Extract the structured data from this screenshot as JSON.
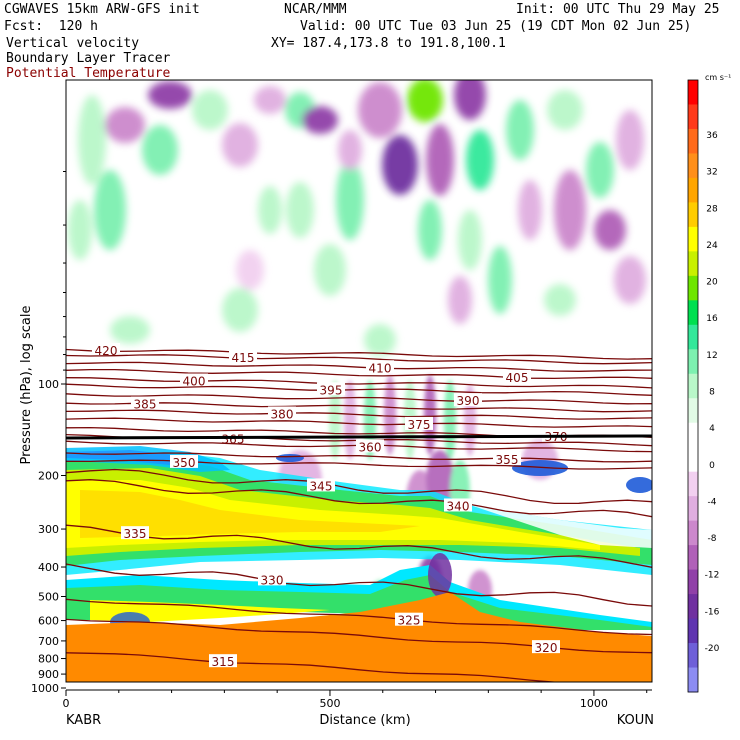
{
  "header": {
    "model": "CGWAVES 15km ARW-GFS init",
    "org": "NCAR/MMM",
    "init": "Init: 00 UTC Thu 29 May 25",
    "fcst": "Fcst:  120 h",
    "valid": "Valid: 00 UTC Tue 03 Jun 25 (19 CDT Mon 02 Jun 25)",
    "field1": "Vertical velocity",
    "xy": "XY= 187.4,173.8 to 191.8,100.1",
    "field2": "Boundary Layer Tracer",
    "field3": "Potential Temperature"
  },
  "chart_data": {
    "type": "heatmap",
    "xlabel": "Distance (km)",
    "ylabel": "Pressure (hPa), log scale",
    "x_ticks": [
      0,
      500,
      1000
    ],
    "x_range": [
      0,
      1110
    ],
    "y_ticks": [
      100,
      200,
      300,
      400,
      500,
      600,
      700,
      800,
      900,
      1000
    ],
    "y_scale": "log",
    "left_endpoint": "KABR",
    "right_endpoint": "KOUN",
    "colorbar": {
      "unit": "cm s⁻¹",
      "labels": [
        36,
        32,
        28,
        24,
        20,
        16,
        12,
        8,
        4,
        0,
        -4,
        -8,
        -12,
        -16,
        -20
      ],
      "colors": [
        "#ff0000",
        "#ff3a1a",
        "#ff6a1a",
        "#ff8f1a",
        "#ffa500",
        "#ffcc00",
        "#ffff00",
        "#c8f000",
        "#6ee600",
        "#00e050",
        "#33e89a",
        "#7df0b0",
        "#b9f7c9",
        "#e2fbe6",
        "#ffffff",
        "#ffffff",
        "#f2d0f0",
        "#e0aee0",
        "#cc88cc",
        "#b060b8",
        "#9040a8",
        "#7030a0",
        "#5f34b0",
        "#6e5fd8",
        "#8c8cf2"
      ]
    },
    "theta_contours": [
      {
        "label": "420",
        "p": 77
      },
      {
        "label": "415",
        "p": 80
      },
      {
        "label": "410",
        "p": 85
      },
      {
        "label": "405",
        "p": 90
      },
      {
        "label": "400",
        "p": 96
      },
      {
        "label": "395",
        "p": 101
      },
      {
        "label": "390",
        "p": 108
      },
      {
        "label": "385",
        "p": 115
      },
      {
        "label": "380",
        "p": 122
      },
      {
        "label": "375",
        "p": 130
      },
      {
        "label": "370",
        "p": 140
      },
      {
        "label": "365",
        "p": 148
      },
      {
        "label": "360",
        "p": 155
      },
      {
        "label": "355",
        "p": 168
      },
      {
        "label": "350",
        "p": 178
      },
      {
        "label": "345",
        "p": 192
      },
      {
        "label": "340",
        "p": 210
      },
      {
        "label": "335",
        "p": 300
      },
      {
        "label": "330",
        "p": 400
      },
      {
        "label": "325",
        "p": 510
      },
      {
        "label": "320",
        "p": 590
      },
      {
        "label": "315",
        "p": 760
      }
    ]
  }
}
